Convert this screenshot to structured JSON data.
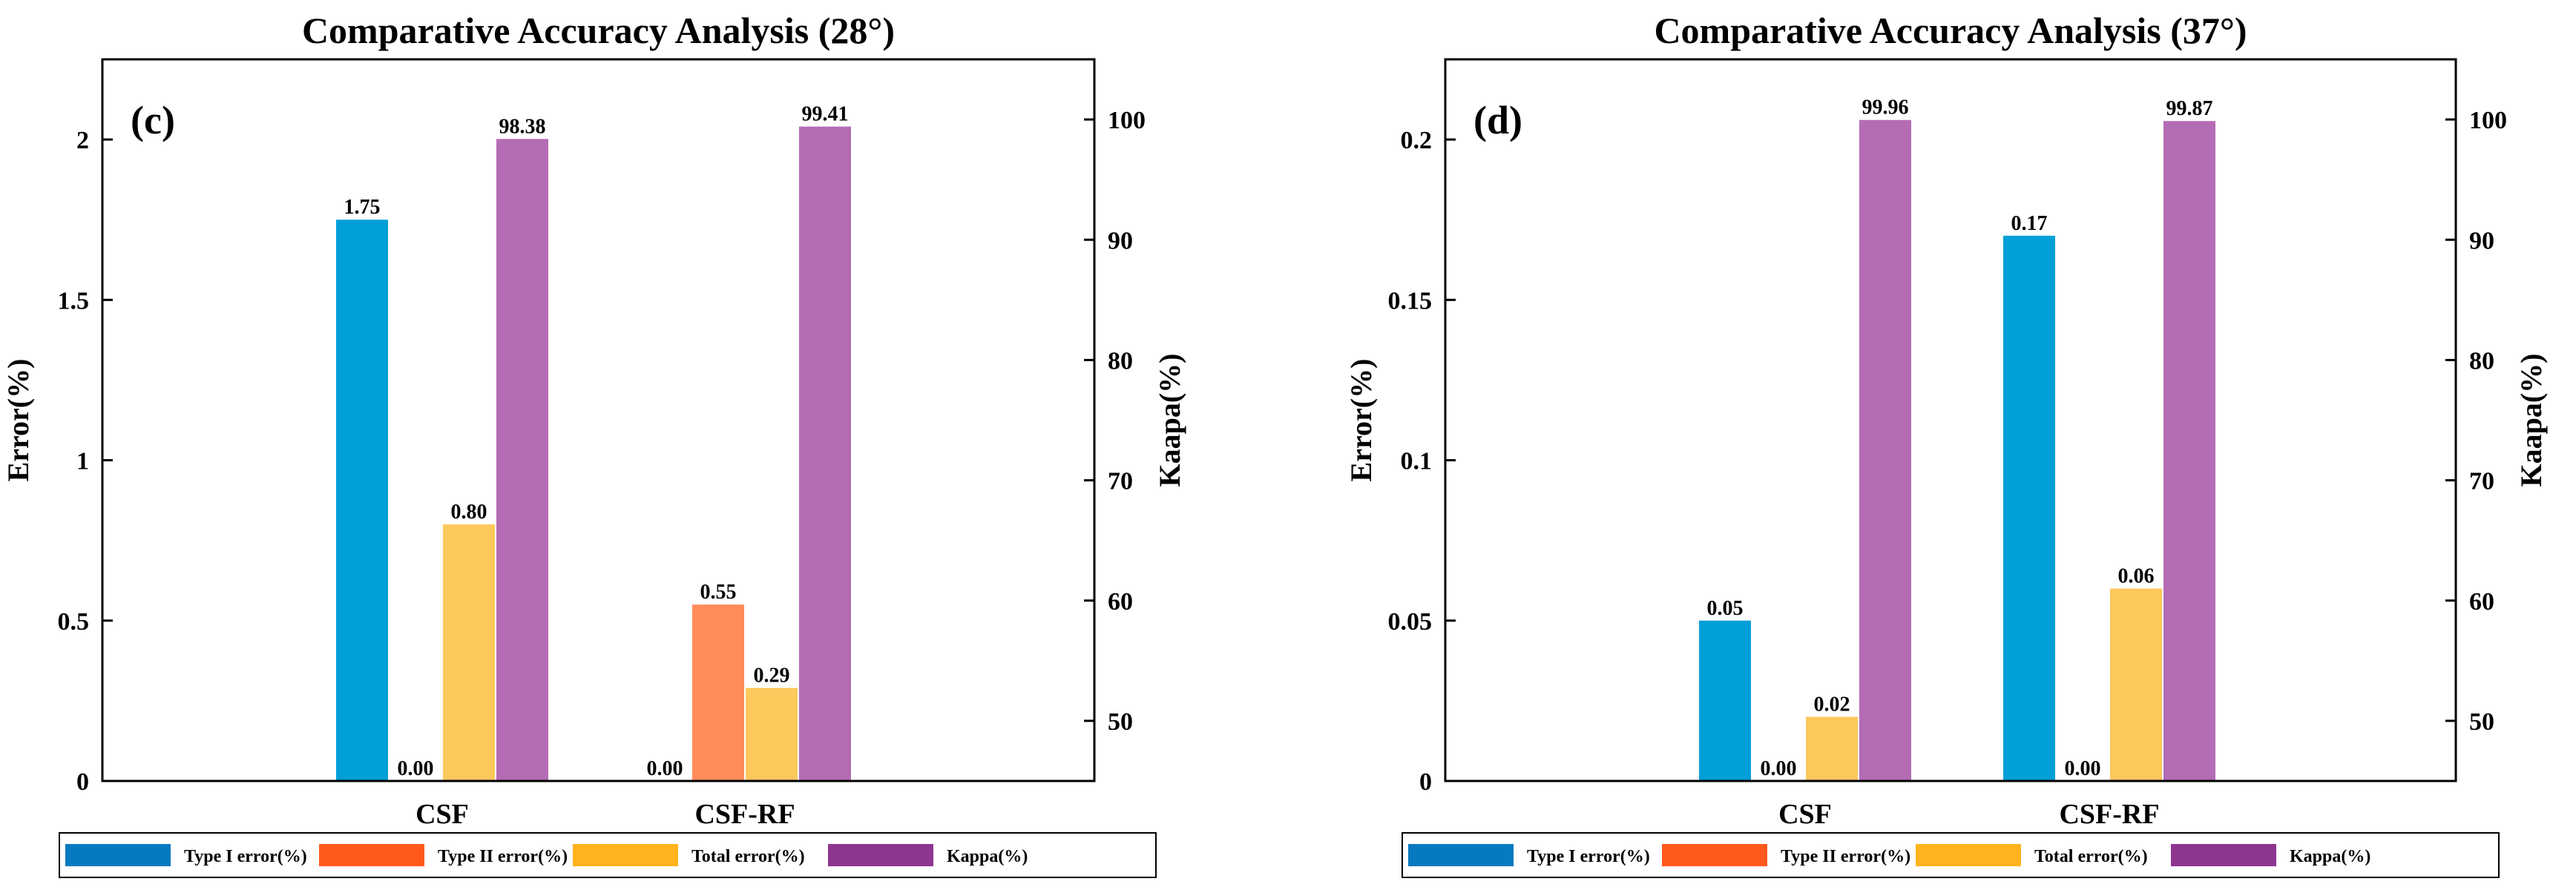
{
  "chart_data": [
    {
      "type": "bar",
      "panel_letter": "(c)",
      "title": "Comparative Accuracy Analysis (28°)",
      "categories": [
        "CSF",
        "CSF-RF"
      ],
      "ylabel": "Error(%)",
      "ylabel_right": "Kaapa(%)",
      "ylim": [
        0,
        2.25
      ],
      "yticks": [
        "0",
        "0.5",
        "1",
        "1.5",
        "2"
      ],
      "ytick_values": [
        0,
        0.5,
        1,
        1.5,
        2
      ],
      "ylim_right": [
        45,
        105
      ],
      "yticks_right": [
        "50",
        "60",
        "70",
        "80",
        "90",
        "100"
      ],
      "ytick_values_right": [
        50,
        60,
        70,
        80,
        90,
        100
      ],
      "series": [
        {
          "name": "Type I error(%)",
          "axis": "left",
          "values": [
            1.75,
            0.0
          ],
          "labels": [
            "1.75",
            "0.00"
          ],
          "color": "#009fd7"
        },
        {
          "name": "Type II error(%)",
          "axis": "left",
          "values": [
            0.0,
            0.55
          ],
          "labels": [
            "0.00",
            "0.55"
          ],
          "color": "#ff8c5a"
        },
        {
          "name": "Total error(%)",
          "axis": "left",
          "values": [
            0.8,
            0.29
          ],
          "labels": [
            "0.80",
            "0.29"
          ],
          "color": "#fdc85c"
        },
        {
          "name": "Kappa(%)",
          "axis": "right",
          "values": [
            98.38,
            99.41
          ],
          "labels": [
            "98.38",
            "99.41"
          ],
          "color": "#b46cb4"
        }
      ]
    },
    {
      "type": "bar",
      "panel_letter": "(d)",
      "title": "Comparative Accuracy Analysis (37°)",
      "categories": [
        "CSF",
        "CSF-RF"
      ],
      "ylabel": "Error(%)",
      "ylabel_right": "Kaapa(%)",
      "ylim": [
        0,
        0.225
      ],
      "yticks": [
        "0",
        "0.05",
        "0.1",
        "0.15",
        "0.2"
      ],
      "ytick_values": [
        0,
        0.05,
        0.1,
        0.15,
        0.2
      ],
      "ylim_right": [
        45,
        105
      ],
      "yticks_right": [
        "50",
        "60",
        "70",
        "80",
        "90",
        "100"
      ],
      "ytick_values_right": [
        50,
        60,
        70,
        80,
        90,
        100
      ],
      "series": [
        {
          "name": "Type I error(%)",
          "axis": "left",
          "values": [
            0.05,
            0.17
          ],
          "labels": [
            "0.05",
            "0.17"
          ],
          "color": "#009fd7"
        },
        {
          "name": "Type II error(%)",
          "axis": "left",
          "values": [
            0.0,
            0.0
          ],
          "labels": [
            "0.00",
            "0.00"
          ],
          "color": "#ff8c5a"
        },
        {
          "name": "Total error(%)",
          "axis": "left",
          "values": [
            0.02,
            0.06
          ],
          "labels": [
            "0.02",
            "0.06"
          ],
          "color": "#fdc85c"
        },
        {
          "name": "Kappa(%)",
          "axis": "right",
          "values": [
            99.96,
            99.87
          ],
          "labels": [
            "99.96",
            "99.87"
          ],
          "color": "#b46cb4"
        }
      ]
    }
  ],
  "legend": {
    "items": [
      {
        "name": "Type I error(%)",
        "color": "#0779c1"
      },
      {
        "name": "Type II error(%)",
        "color": "#ff5a1c"
      },
      {
        "name": "Total error(%)",
        "color": "#ffb41e"
      },
      {
        "name": "Kappa(%)",
        "color": "#8e3590"
      }
    ]
  }
}
